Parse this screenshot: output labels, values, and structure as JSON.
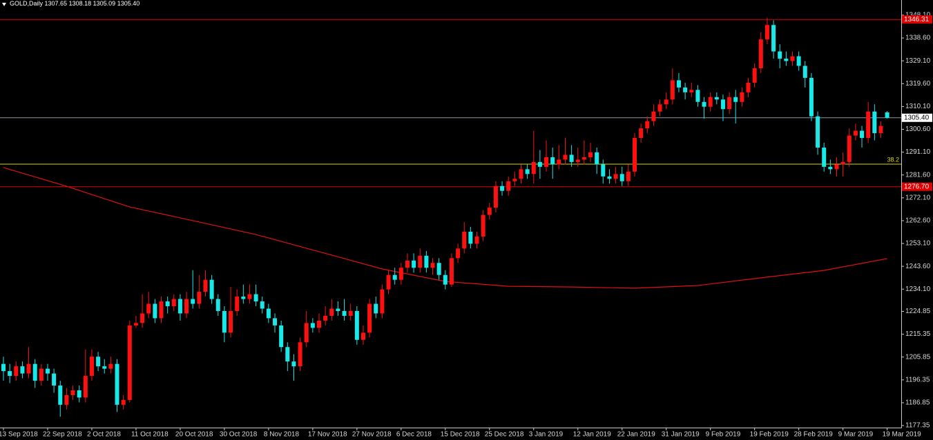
{
  "chart_data": {
    "type": "candlestick",
    "symbol": "GOLD,Daily",
    "price_label": "1305.40",
    "up_color": "#ff1010",
    "down_color": "#18e8e8",
    "ylim": [
      1176.5,
      1354.4
    ],
    "yticks": [
      {
        "value": 1348.1,
        "label": "1348.10"
      },
      {
        "value": 1338.6,
        "label": "1338.60"
      },
      {
        "value": 1329.1,
        "label": "1329.10"
      },
      {
        "value": 1319.6,
        "label": "1319.60"
      },
      {
        "value": 1310.1,
        "label": "1310.10"
      },
      {
        "value": 1300.6,
        "label": "1300.60"
      },
      {
        "value": 1291.1,
        "label": "1291.10"
      },
      {
        "value": 1281.6,
        "label": "1281.60"
      },
      {
        "value": 1272.1,
        "label": "1272.10"
      },
      {
        "value": 1262.6,
        "label": "1262.60"
      },
      {
        "value": 1253.1,
        "label": "1253.10"
      },
      {
        "value": 1243.6,
        "label": "1243.60"
      },
      {
        "value": 1234.1,
        "label": "1234.10"
      },
      1224.85,
      1215.35,
      1205.85,
      1196.35,
      1186.85,
      1177.35
    ],
    "levels": [
      {
        "value": 1346.31,
        "color": "#e00000"
      },
      {
        "value": 1276.7,
        "label": "1276.70",
        "color": "#e00000"
      }
    ],
    "fib_level": {
      "value": 1286.1,
      "label": "38.2",
      "color": "#d8d800"
    },
    "current_color": "#8a9aa8",
    "categories": [
      "13 Sep 2018",
      null,
      null,
      null,
      null,
      null,
      null,
      "22 Sep 2018",
      null,
      null,
      null,
      null,
      null,
      null,
      "2 Oct 2018",
      null,
      null,
      null,
      null,
      null,
      null,
      "11 Oct 2018",
      null,
      null,
      null,
      null,
      null,
      null,
      "20 Oct 2018",
      null,
      null,
      null,
      null,
      null,
      null,
      "30 Oct 2018",
      null,
      null,
      null,
      null,
      null,
      null,
      "8 Nov 2018",
      null,
      null,
      null,
      null,
      null,
      null,
      "17 Nov 2018",
      null,
      null,
      null,
      null,
      null,
      null,
      "27 Nov 2018",
      null,
      null,
      null,
      null,
      null,
      null,
      "6 Dec 2018",
      null,
      null,
      null,
      null,
      null,
      null,
      "15 Dec 2018",
      null,
      null,
      null,
      null,
      null,
      null,
      "25 Dec 2018",
      null,
      null,
      null,
      null,
      null,
      null,
      "3 Jan 2019",
      null,
      null,
      null,
      null,
      null,
      null,
      "12 Jan 2019",
      null,
      null,
      null,
      null,
      null,
      null,
      "22 Jan 2019",
      null,
      null,
      null,
      null,
      null,
      null,
      "31 Jan 2019",
      null,
      null,
      null,
      null,
      null,
      null,
      "9 Feb 2019",
      null,
      null,
      null,
      null,
      null,
      null,
      "19 Feb 2019",
      null,
      null,
      null,
      null,
      null,
      null,
      "28 Feb 2019",
      null,
      null,
      null,
      null,
      null,
      null,
      "9 Mar 2019",
      null,
      null,
      null,
      null,
      null,
      null,
      "19 Mar 2019"
    ],
    "candles": [
      [
        1203,
        1206,
        1196,
        1200
      ],
      [
        1200,
        1203,
        1195,
        1198
      ],
      [
        1198,
        1204,
        1196,
        1202
      ],
      [
        1202,
        1204,
        1197,
        1199
      ],
      [
        1199,
        1210,
        1197,
        1203
      ],
      [
        1203,
        1205,
        1193,
        1196
      ],
      [
        1196,
        1203,
        1194,
        1201
      ],
      [
        1201,
        1203,
        1196,
        1199
      ],
      [
        1199,
        1201,
        1191,
        1194
      ],
      [
        1194,
        1196,
        1181,
        1186
      ],
      [
        1186,
        1193,
        1184,
        1190
      ],
      [
        1190,
        1194,
        1188,
        1192
      ],
      [
        1192,
        1194,
        1187,
        1189
      ],
      [
        1189,
        1209,
        1187,
        1198
      ],
      [
        1198,
        1209,
        1196,
        1206
      ],
      [
        1206,
        1208,
        1200,
        1202
      ],
      [
        1202,
        1205,
        1199,
        1201
      ],
      [
        1201,
        1206,
        1199,
        1203
      ],
      [
        1203,
        1205,
        1183,
        1186
      ],
      [
        1186,
        1190,
        1184,
        1188
      ],
      [
        1188,
        1221,
        1187,
        1219
      ],
      [
        1219,
        1223,
        1218,
        1220
      ],
      [
        1220,
        1232,
        1218,
        1224
      ],
      [
        1224,
        1233,
        1222,
        1228
      ],
      [
        1228,
        1230,
        1220,
        1222
      ],
      [
        1222,
        1231,
        1220,
        1229
      ],
      [
        1229,
        1231,
        1224,
        1227
      ],
      [
        1227,
        1232,
        1225,
        1230
      ],
      [
        1230,
        1232,
        1221,
        1224
      ],
      [
        1224,
        1233,
        1222,
        1230
      ],
      [
        1230,
        1242,
        1226,
        1228
      ],
      [
        1228,
        1240,
        1226,
        1233
      ],
      [
        1233,
        1242,
        1231,
        1238
      ],
      [
        1238,
        1240,
        1228,
        1230
      ],
      [
        1230,
        1232,
        1223,
        1225
      ],
      [
        1225,
        1227,
        1212,
        1216
      ],
      [
        1216,
        1235,
        1214,
        1225
      ],
      [
        1225,
        1234,
        1223,
        1231
      ],
      [
        1231,
        1236,
        1228,
        1230
      ],
      [
        1230,
        1236,
        1228,
        1232
      ],
      [
        1232,
        1236,
        1227,
        1229
      ],
      [
        1229,
        1231,
        1224,
        1226
      ],
      [
        1226,
        1228,
        1220,
        1222
      ],
      [
        1222,
        1224,
        1216,
        1219
      ],
      [
        1219,
        1221,
        1208,
        1210
      ],
      [
        1210,
        1212,
        1200,
        1204
      ],
      [
        1204,
        1207,
        1196,
        1202
      ],
      [
        1202,
        1214,
        1200,
        1212
      ],
      [
        1212,
        1225,
        1210,
        1220
      ],
      [
        1220,
        1222,
        1216,
        1218
      ],
      [
        1218,
        1224,
        1216,
        1221
      ],
      [
        1221,
        1227,
        1219,
        1223
      ],
      [
        1223,
        1230,
        1221,
        1226
      ],
      [
        1226,
        1229,
        1223,
        1225
      ],
      [
        1225,
        1230,
        1221,
        1223
      ],
      [
        1223,
        1228,
        1221,
        1225
      ],
      [
        1225,
        1227,
        1211,
        1213
      ],
      [
        1213,
        1219,
        1211,
        1216
      ],
      [
        1216,
        1230,
        1214,
        1228
      ],
      [
        1228,
        1231,
        1222,
        1224
      ],
      [
        1224,
        1236,
        1222,
        1234
      ],
      [
        1234,
        1242,
        1232,
        1240
      ],
      [
        1240,
        1243,
        1236,
        1238
      ],
      [
        1238,
        1245,
        1236,
        1243
      ],
      [
        1243,
        1249,
        1241,
        1246
      ],
      [
        1246,
        1249,
        1241,
        1243
      ],
      [
        1243,
        1251,
        1241,
        1248
      ],
      [
        1248,
        1250,
        1241,
        1243
      ],
      [
        1243,
        1247,
        1240,
        1245
      ],
      [
        1245,
        1247,
        1238,
        1240
      ],
      [
        1240,
        1242,
        1234,
        1236
      ],
      [
        1236,
        1249,
        1235,
        1247
      ],
      [
        1247,
        1253,
        1245,
        1251
      ],
      [
        1251,
        1262,
        1249,
        1258
      ],
      [
        1258,
        1260,
        1251,
        1253
      ],
      [
        1253,
        1258,
        1251,
        1256
      ],
      [
        1256,
        1267,
        1254,
        1265
      ],
      [
        1265,
        1270,
        1263,
        1268
      ],
      [
        1268,
        1279,
        1266,
        1277
      ],
      [
        1277,
        1279,
        1273,
        1275
      ],
      [
        1275,
        1281,
        1273,
        1279
      ],
      [
        1279,
        1283,
        1277,
        1280
      ],
      [
        1280,
        1286,
        1278,
        1284
      ],
      [
        1284,
        1286,
        1280,
        1282
      ],
      [
        1282,
        1300,
        1278,
        1287
      ],
      [
        1287,
        1292,
        1280,
        1285
      ],
      [
        1285,
        1296,
        1283,
        1289
      ],
      [
        1289,
        1293,
        1280,
        1286
      ],
      [
        1286,
        1294,
        1284,
        1288
      ],
      [
        1288,
        1297,
        1286,
        1290
      ],
      [
        1290,
        1294,
        1285,
        1287
      ],
      [
        1287,
        1293,
        1285,
        1288
      ],
      [
        1288,
        1296,
        1286,
        1289
      ],
      [
        1289,
        1295,
        1287,
        1291
      ],
      [
        1291,
        1293,
        1282,
        1286
      ],
      [
        1286,
        1288,
        1278,
        1281
      ],
      [
        1281,
        1284,
        1278,
        1280
      ],
      [
        1280,
        1285,
        1278,
        1282
      ],
      [
        1282,
        1285,
        1277,
        1279
      ],
      [
        1279,
        1286,
        1277,
        1283
      ],
      [
        1283,
        1299,
        1281,
        1297
      ],
      [
        1297,
        1303,
        1295,
        1301
      ],
      [
        1301,
        1306,
        1299,
        1304
      ],
      [
        1304,
        1311,
        1302,
        1308
      ],
      [
        1308,
        1313,
        1306,
        1311
      ],
      [
        1311,
        1316,
        1309,
        1313
      ],
      [
        1313,
        1326,
        1311,
        1321
      ],
      [
        1321,
        1324,
        1316,
        1318
      ],
      [
        1318,
        1320,
        1313,
        1316
      ],
      [
        1316,
        1320,
        1314,
        1317
      ],
      [
        1317,
        1319,
        1310,
        1312
      ],
      [
        1312,
        1314,
        1305,
        1310
      ],
      [
        1310,
        1316,
        1308,
        1314
      ],
      [
        1314,
        1316,
        1311,
        1313
      ],
      [
        1313,
        1315,
        1304,
        1309
      ],
      [
        1309,
        1316,
        1307,
        1314
      ],
      [
        1314,
        1317,
        1303,
        1312
      ],
      [
        1312,
        1318,
        1310,
        1316
      ],
      [
        1316,
        1322,
        1314,
        1320
      ],
      [
        1320,
        1328,
        1318,
        1326
      ],
      [
        1326,
        1341,
        1324,
        1338
      ],
      [
        1338,
        1347,
        1336,
        1344
      ],
      [
        1344,
        1346,
        1330,
        1333
      ],
      [
        1333,
        1336,
        1326,
        1330
      ],
      [
        1330,
        1333,
        1327,
        1329
      ],
      [
        1329,
        1333,
        1327,
        1331
      ],
      [
        1331,
        1333,
        1325,
        1327
      ],
      [
        1327,
        1329,
        1318,
        1322
      ],
      [
        1322,
        1324,
        1304,
        1306
      ],
      [
        1306,
        1308,
        1290,
        1293
      ],
      [
        1293,
        1295,
        1283,
        1285
      ],
      [
        1285,
        1288,
        1282,
        1284
      ],
      [
        1284,
        1289,
        1281,
        1286
      ],
      [
        1286,
        1291,
        1281,
        1287
      ],
      [
        1287,
        1301,
        1285,
        1298
      ],
      [
        1298,
        1303,
        1296,
        1300
      ],
      [
        1300,
        1302,
        1293,
        1297
      ],
      [
        1297,
        1312,
        1295,
        1308
      ],
      [
        1308,
        1311,
        1296,
        1299
      ],
      [
        1299,
        1304,
        1297,
        1302
      ],
      [
        1307.65,
        1308.18,
        1305.09,
        1305.4
      ]
    ],
    "moving_average": {
      "color": "#e01010",
      "x": [
        0,
        10,
        20,
        30,
        40,
        50,
        60,
        70,
        80,
        90,
        100,
        110,
        120,
        130,
        140
      ],
      "values": [
        1284.7,
        1276.9,
        1268.3,
        1262.6,
        1256.8,
        1249.7,
        1242.5,
        1237.3,
        1235.3,
        1235.0,
        1234.5,
        1235.6,
        1238.8,
        1241.9,
        1246.8
      ]
    }
  }
}
